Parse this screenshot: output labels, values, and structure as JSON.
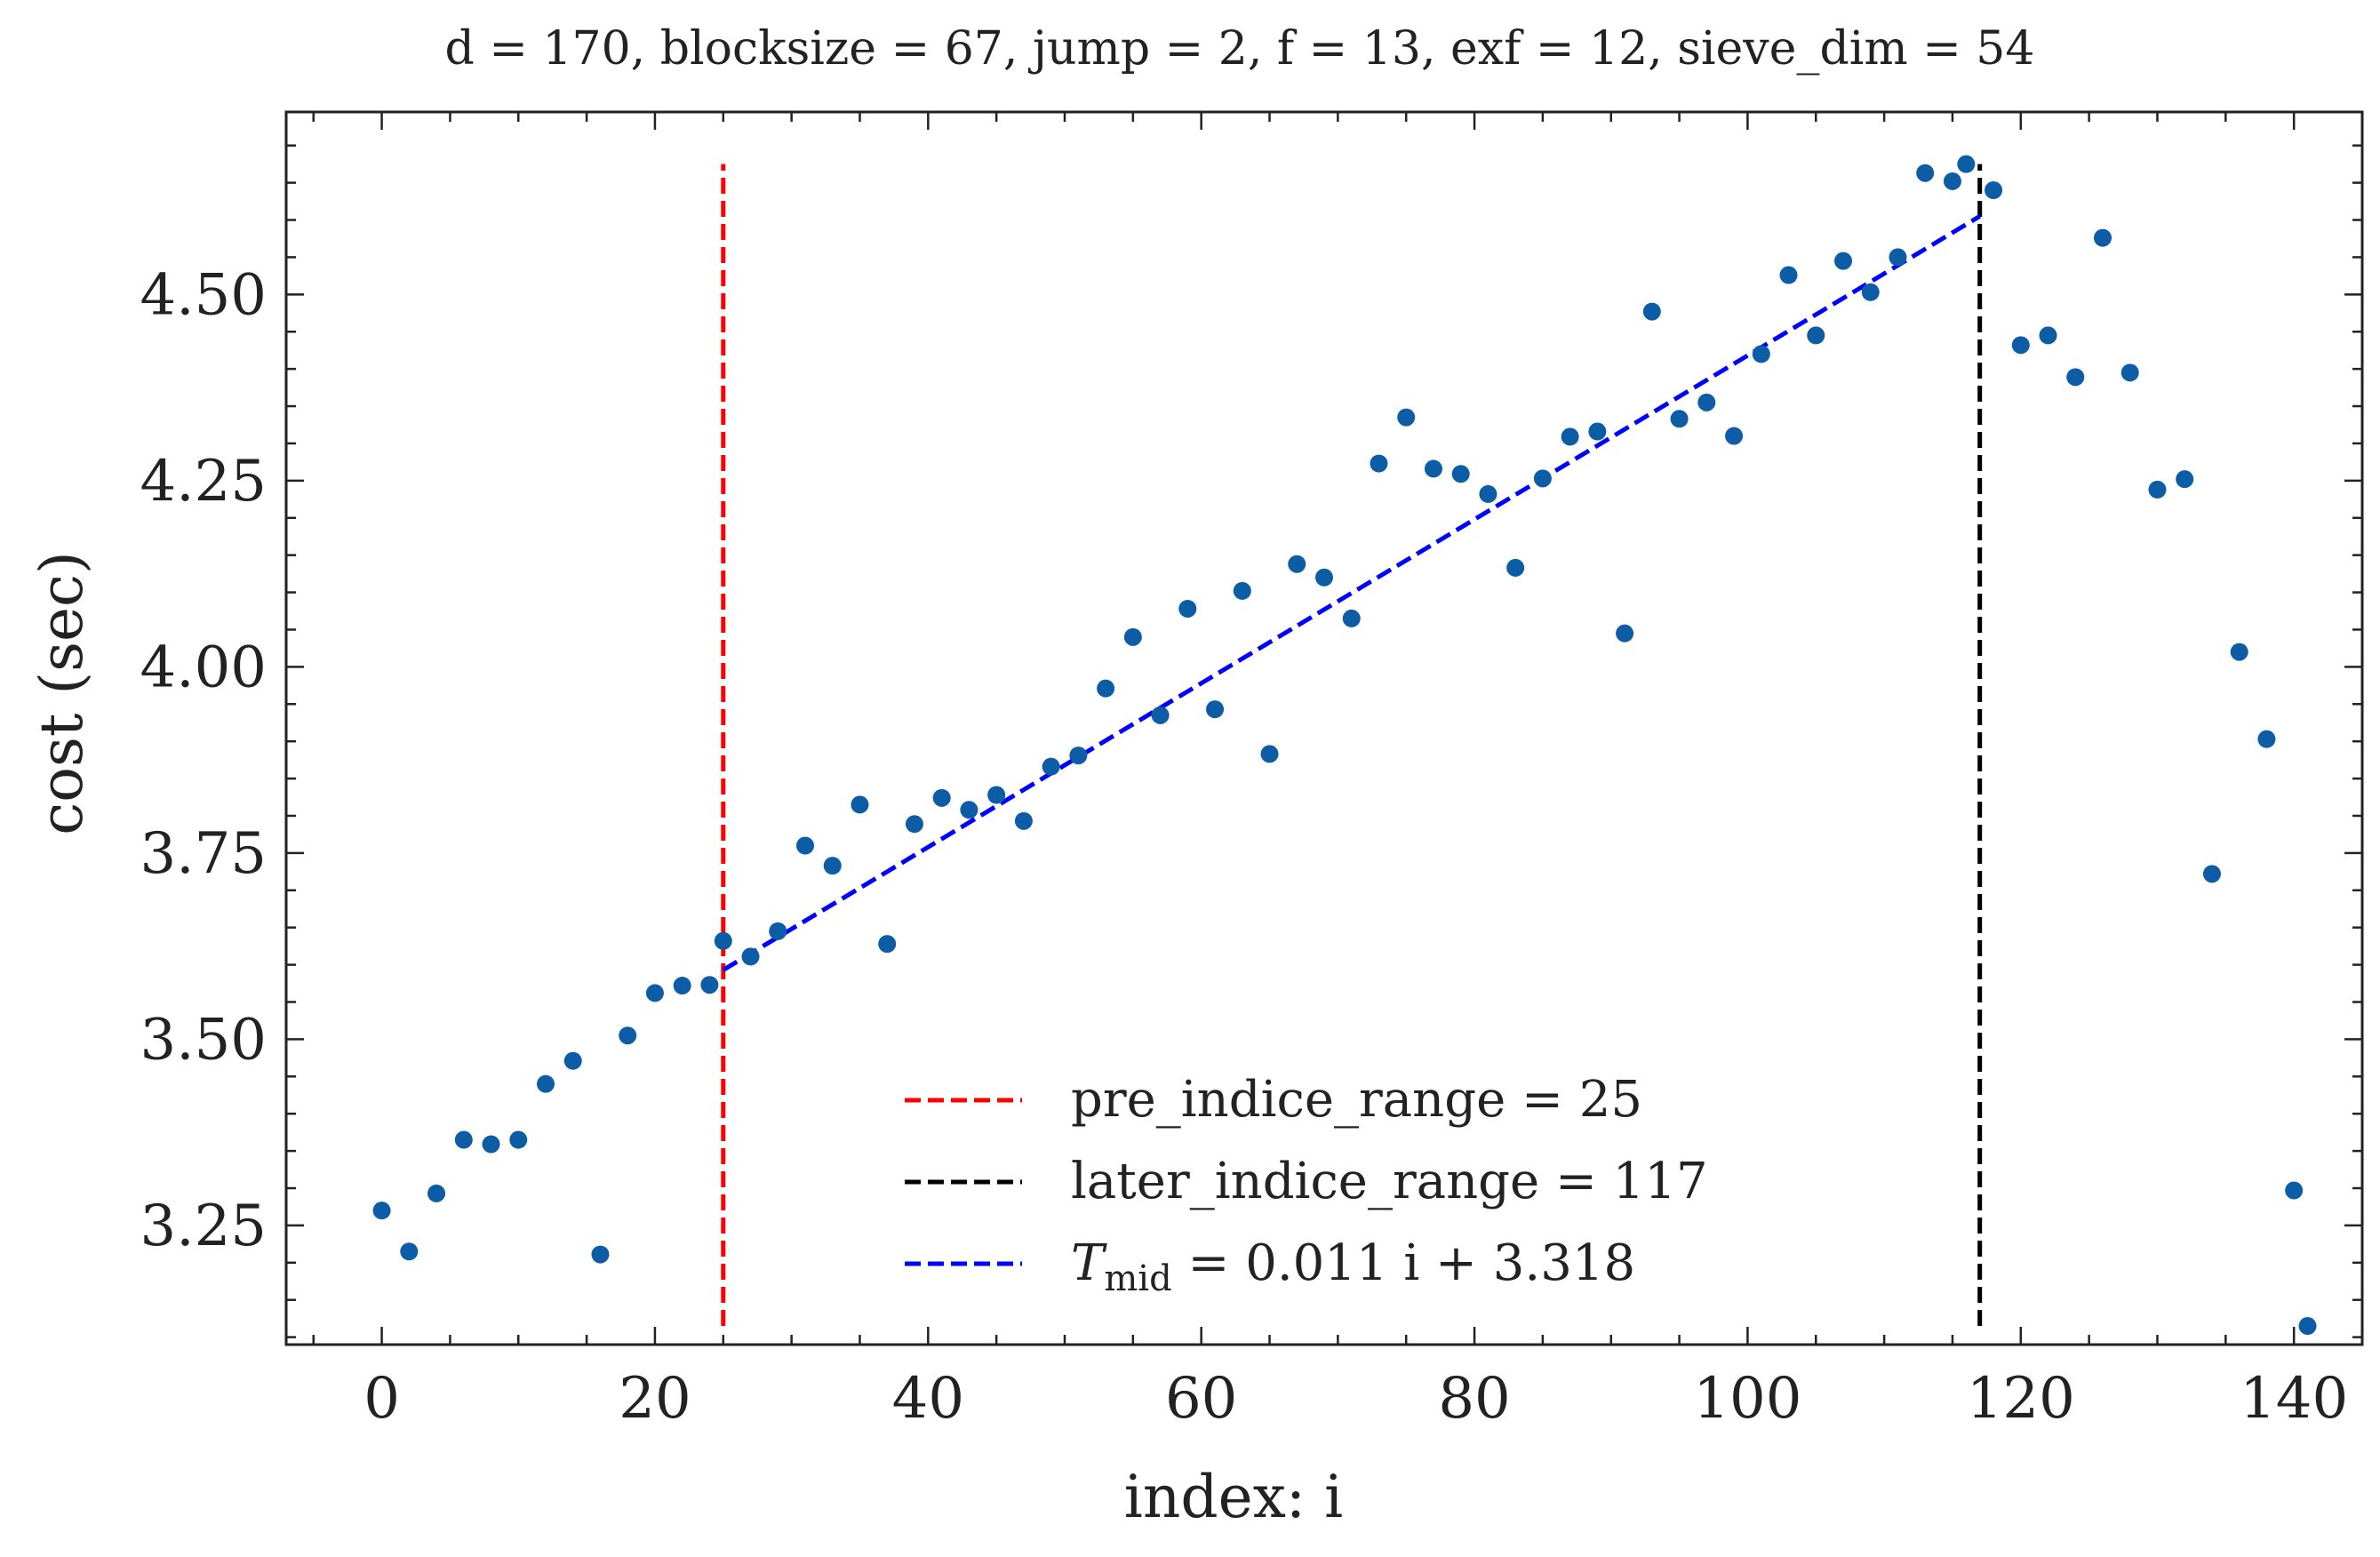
{
  "chart_data": {
    "type": "scatter",
    "title": "d = 170, blocksize = 67, jump = 2, f = 13, exf = 12, sieve_dim = 54",
    "xlabel": "index: i",
    "ylabel": "cost (sec)",
    "xlim": [
      -7,
      145
    ],
    "ylim": [
      3.09,
      4.745
    ],
    "xticks": [
      0,
      20,
      40,
      60,
      80,
      100,
      120,
      140
    ],
    "yticks": [
      3.25,
      3.5,
      3.75,
      4.0,
      4.25,
      4.5
    ],
    "ytick_labels": [
      "3.25",
      "3.50",
      "3.75",
      "4.00",
      "4.25",
      "4.50"
    ],
    "grid": false,
    "legend_position": "lower-center",
    "points": {
      "color": "#0C5DA5",
      "x": [
        0,
        2,
        4,
        6,
        8,
        10,
        12,
        14,
        16,
        18,
        20,
        22,
        24,
        25,
        27,
        29,
        31,
        33,
        35,
        37,
        39,
        41,
        43,
        45,
        47,
        49,
        51,
        53,
        55,
        57,
        59,
        61,
        63,
        65,
        67,
        69,
        71,
        73,
        75,
        77,
        79,
        81,
        83,
        85,
        87,
        89,
        91,
        93,
        95,
        97,
        99,
        101,
        103,
        105,
        107,
        109,
        111,
        113,
        115,
        116,
        118,
        120,
        122,
        124,
        126,
        128,
        130,
        132,
        134,
        136,
        138,
        140,
        141
      ],
      "y": [
        3.27,
        3.215,
        3.293,
        3.365,
        3.359,
        3.365,
        3.44,
        3.471,
        3.211,
        3.505,
        3.562,
        3.572,
        3.573,
        3.632,
        3.611,
        3.645,
        3.76,
        3.733,
        3.815,
        3.628,
        3.789,
        3.824,
        3.808,
        3.828,
        3.793,
        3.866,
        3.881,
        3.971,
        4.04,
        3.935,
        4.078,
        3.943,
        4.102,
        3.883,
        4.138,
        4.12,
        4.065,
        4.273,
        4.335,
        4.266,
        4.259,
        4.232,
        4.133,
        4.253,
        4.309,
        4.316,
        4.045,
        4.477,
        4.333,
        4.355,
        4.31,
        4.42,
        4.526,
        4.445,
        4.545,
        4.503,
        4.55,
        4.663,
        4.652,
        4.675,
        4.64,
        4.432,
        4.445,
        4.389,
        4.576,
        4.395,
        4.238,
        4.252,
        3.722,
        4.02,
        3.903,
        3.297,
        3.115
      ]
    },
    "series": [
      {
        "name": "pre_indice_range = 25",
        "kind": "vline",
        "x": 25,
        "y_range": [
          3.115,
          4.675
        ],
        "color": "#FF0000"
      },
      {
        "name": "later_indice_range = 117",
        "kind": "vline",
        "x": 117,
        "y_range": [
          3.115,
          4.675
        ],
        "color": "#000000"
      },
      {
        "name": "T_mid = 0.011 i + 3.318",
        "kind": "fit_line",
        "x_range": [
          25,
          117
        ],
        "slope": 0.011,
        "intercept": 3.318,
        "color": "#0000FF"
      }
    ],
    "legend": [
      {
        "text": "pre_indice_range = 25",
        "color": "#FF0000"
      },
      {
        "text": "later_indice_range = 117",
        "color": "#000000"
      },
      {
        "text_main": "T",
        "text_sub": "mid",
        "text_rest": " = 0.011 i + 3.318",
        "color": "#0000FF"
      }
    ]
  }
}
